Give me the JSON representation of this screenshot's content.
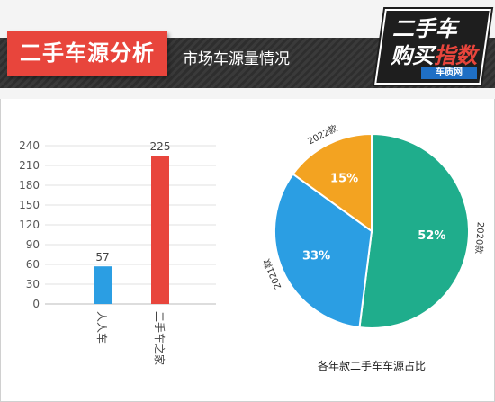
{
  "header": {
    "title": "二手车源分析",
    "subtitle": "市场车源量情况",
    "logo_line1": "二手车",
    "logo_line2a": "购买",
    "logo_line2b": "指数",
    "logo_sub": "车质网"
  },
  "colors": {
    "accent": "#e8453c",
    "bar_blue": "#2b9ee3",
    "bar_red": "#e8453c",
    "pie_green": "#1fad8c",
    "pie_blue": "#2b9ee3",
    "pie_orange": "#f3a321"
  },
  "chart_data": [
    {
      "type": "bar",
      "categories": [
        "人人车",
        "二手车之家"
      ],
      "values": [
        57,
        225
      ],
      "ylim": [
        0,
        240
      ],
      "yticks": [
        0,
        30,
        60,
        90,
        120,
        150,
        180,
        210,
        240
      ],
      "grid": true,
      "title": "",
      "xlabel": "",
      "ylabel": ""
    },
    {
      "type": "pie",
      "title": "各年款二手车车源占比",
      "slices": [
        {
          "label": "2020款",
          "value": 52,
          "value_label": "52%"
        },
        {
          "label": "2021款",
          "value": 33,
          "value_label": "33%"
        },
        {
          "label": "2022款",
          "value": 15,
          "value_label": "15%"
        }
      ]
    }
  ]
}
